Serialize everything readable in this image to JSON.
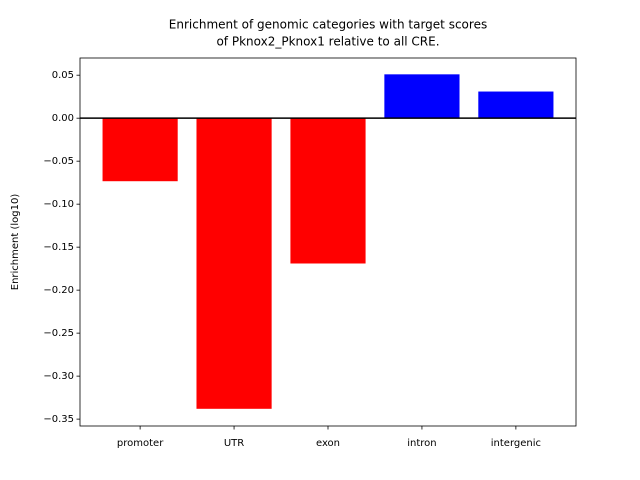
{
  "chart_data": {
    "type": "bar",
    "title": [
      "Enrichment of genomic categories with target scores",
      "of Pknox2_Pknox1 relative to all CRE."
    ],
    "y_label": "Enrichment (log10)",
    "categories": [
      "promoter",
      "UTR",
      "exon",
      "intron",
      "intergenic"
    ],
    "values": [
      -0.0733,
      -0.338,
      -0.169,
      0.051,
      0.031
    ],
    "colors": [
      "#ff0000",
      "#ff0000",
      "#ff0000",
      "#0000ff",
      "#0000ff"
    ],
    "ylim": [
      -0.358,
      0.07
    ],
    "yticks": [
      0.05,
      {
        "value": 0,
        "label": "0.00"
      },
      {
        "value": -0.05,
        "label": "−0.05"
      },
      {
        "value": -0.1,
        "label": "−0.10"
      },
      {
        "value": -0.15,
        "label": "−0.15"
      },
      {
        "value": -0.2,
        "label": "−0.20"
      },
      {
        "value": -0.25,
        "label": "−0.25"
      },
      {
        "value": -0.3,
        "label": "−0.30"
      },
      {
        "value": -0.35,
        "label": "−0.35"
      }
    ]
  }
}
